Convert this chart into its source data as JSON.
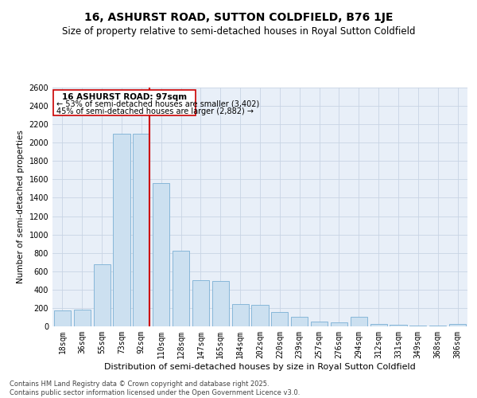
{
  "title": "16, ASHURST ROAD, SUTTON COLDFIELD, B76 1JE",
  "subtitle": "Size of property relative to semi-detached houses in Royal Sutton Coldfield",
  "xlabel": "Distribution of semi-detached houses by size in Royal Sutton Coldfield",
  "ylabel": "Number of semi-detached properties",
  "categories": [
    "18sqm",
    "36sqm",
    "55sqm",
    "73sqm",
    "92sqm",
    "110sqm",
    "128sqm",
    "147sqm",
    "165sqm",
    "184sqm",
    "202sqm",
    "220sqm",
    "239sqm",
    "257sqm",
    "276sqm",
    "294sqm",
    "312sqm",
    "331sqm",
    "349sqm",
    "368sqm",
    "386sqm"
  ],
  "values": [
    175,
    185,
    680,
    2100,
    2100,
    1560,
    820,
    500,
    490,
    245,
    235,
    160,
    100,
    50,
    45,
    100,
    30,
    20,
    8,
    5,
    30
  ],
  "bar_color": "#cce0f0",
  "bar_edge_color": "#7ab0d4",
  "vline_color": "#cc0000",
  "annotation_box_color": "#cc0000",
  "grid_color": "#c8d4e4",
  "background_color": "#e8eff8",
  "ylim": [
    0,
    2600
  ],
  "yticks": [
    0,
    200,
    400,
    600,
    800,
    1000,
    1200,
    1400,
    1600,
    1800,
    2000,
    2200,
    2400,
    2600
  ],
  "marker_label": "16 ASHURST ROAD: 97sqm",
  "annotation_smaller": "← 53% of semi-detached houses are smaller (3,402)",
  "annotation_larger": "45% of semi-detached houses are larger (2,882) →",
  "footer": "Contains HM Land Registry data © Crown copyright and database right 2025.\nContains public sector information licensed under the Open Government Licence v3.0.",
  "title_fontsize": 10,
  "subtitle_fontsize": 8.5,
  "xlabel_fontsize": 8,
  "ylabel_fontsize": 7.5,
  "tick_fontsize": 7,
  "annotation_fontsize": 7,
  "footer_fontsize": 6
}
